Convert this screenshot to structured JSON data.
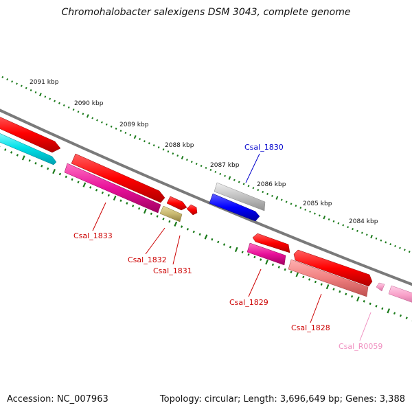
{
  "title": "Chromohalobacter salexigens DSM 3043, complete genome",
  "footer": {
    "accession": "Accession: NC_007963",
    "summary": "Topology: circular; Length: 3,696,649 bp; Genes: 3,388"
  },
  "ruler": {
    "ticks": [
      {
        "label": "2091 kbp"
      },
      {
        "label": "2090 kbp"
      },
      {
        "label": "2089 kbp"
      },
      {
        "label": "2088 kbp"
      },
      {
        "label": "2087 kbp"
      },
      {
        "label": "2086 kbp"
      },
      {
        "label": "2085 kbp"
      },
      {
        "label": "2084 kbp"
      }
    ]
  },
  "genes": [
    {
      "label": "Csal_1830",
      "color": "#0000cc"
    },
    {
      "label": "Csal_1833",
      "color": "#cc0000"
    },
    {
      "label": "Csal_1832",
      "color": "#cc0000"
    },
    {
      "label": "Csal_1831",
      "color": "#cc0000"
    },
    {
      "label": "Csal_1829",
      "color": "#cc0000"
    },
    {
      "label": "Csal_1828",
      "color": "#cc0000"
    },
    {
      "label": "Csal_R0059",
      "color": "#f090c0"
    }
  ],
  "colors": {
    "backbone": "#808080",
    "ticks": "#1a7a1a",
    "cds_red": "#ff0000",
    "cds_magenta": "#e8109a",
    "rrna_cyan": "#00e0e8",
    "blue": "#0000ff",
    "grey": "#bfbfbf",
    "olive": "#c8b870",
    "salmon": "#f08080",
    "pink": "#f8a0c8"
  }
}
